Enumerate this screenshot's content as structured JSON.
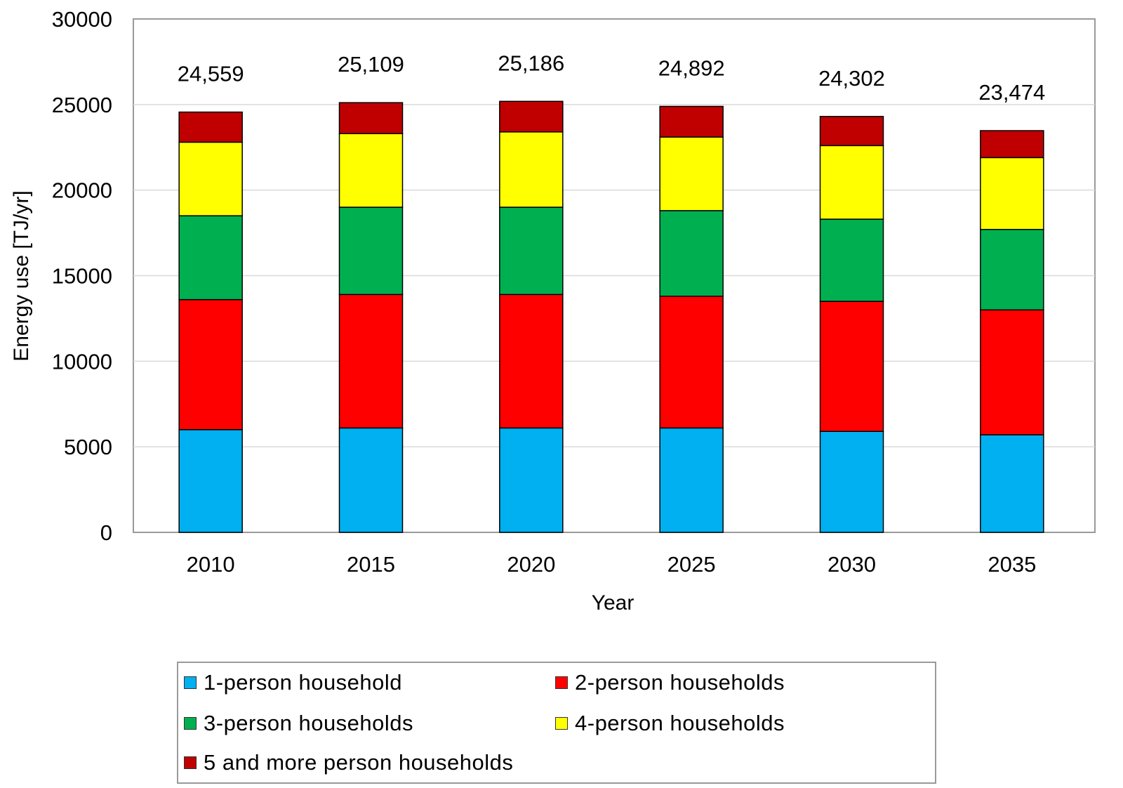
{
  "chart_data": {
    "type": "bar",
    "stacked": true,
    "categories": [
      "2010",
      "2015",
      "2020",
      "2025",
      "2030",
      "2035"
    ],
    "series": [
      {
        "name": "1-person household",
        "color": "#00b0f0",
        "values": [
          6000,
          6100,
          6100,
          6100,
          5900,
          5700
        ]
      },
      {
        "name": "2-person households",
        "color": "#ff0000",
        "values": [
          7600,
          7800,
          7800,
          7700,
          7600,
          7300
        ]
      },
      {
        "name": "3-person households",
        "color": "#00b050",
        "values": [
          4900,
          5100,
          5100,
          5000,
          4800,
          4700
        ]
      },
      {
        "name": "4-person households",
        "color": "#ffff00",
        "values": [
          4300,
          4300,
          4400,
          4300,
          4300,
          4200
        ]
      },
      {
        "name": "5 and more person households",
        "color": "#c00000",
        "values": [
          1759,
          1809,
          1786,
          1792,
          1702,
          1574
        ]
      }
    ],
    "totals": [
      24559,
      25109,
      25186,
      24892,
      24302,
      23474
    ],
    "total_labels": [
      "24,559",
      "25,109",
      "25,186",
      "24,892",
      "24,302",
      "23,474"
    ],
    "xlabel": "Year",
    "ylabel": "Energy use [TJ/yr]",
    "ylim": [
      0,
      30000
    ],
    "yticks": [
      0,
      5000,
      10000,
      15000,
      20000,
      25000,
      30000
    ],
    "grid": true,
    "legend_position": "bottom"
  }
}
